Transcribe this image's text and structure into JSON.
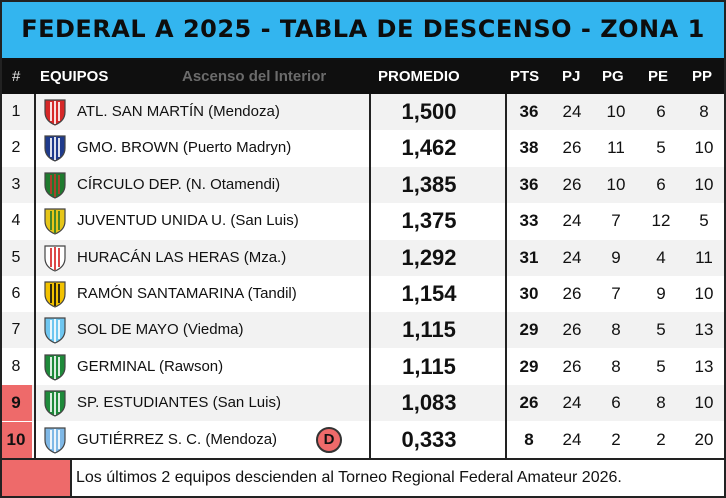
{
  "title": "FEDERAL A 2025 - TABLA DE DESCENSO - ZONA 1",
  "headers": {
    "num": "#",
    "teams": "EQUIPOS",
    "watermark": "Ascenso del Interior",
    "promedio": "PROMEDIO",
    "pts": "PTS",
    "pj": "PJ",
    "pg": "PG",
    "pe": "PE",
    "pp": "PP"
  },
  "rows": [
    {
      "pos": "1",
      "team": "ATL. SAN MARTÍN (Mendoza)",
      "promedio": "1,500",
      "pts": "36",
      "pj": "24",
      "pg": "10",
      "pe": "6",
      "pp": "8",
      "logo": "crest-red-white-stripes-icon",
      "color1": "#d62828",
      "color2": "#ffffff"
    },
    {
      "pos": "2",
      "team": "GMO. BROWN (Puerto Madryn)",
      "promedio": "1,462",
      "pts": "38",
      "pj": "26",
      "pg": "11",
      "pe": "5",
      "pp": "10",
      "logo": "crest-blue-white-icon",
      "color1": "#1f3b8c",
      "color2": "#ffffff"
    },
    {
      "pos": "3",
      "team": "CÍRCULO DEP. (N. Otamendi)",
      "promedio": "1,385",
      "pts": "36",
      "pj": "26",
      "pg": "10",
      "pe": "6",
      "pp": "10",
      "logo": "crest-green-red-icon",
      "color1": "#1e7a2e",
      "color2": "#c0392b"
    },
    {
      "pos": "4",
      "team": "JUVENTUD UNIDA U. (San Luis)",
      "promedio": "1,375",
      "pts": "33",
      "pj": "24",
      "pg": "7",
      "pe": "12",
      "pp": "5",
      "logo": "crest-yellow-green-stripes-icon",
      "color1": "#e6c619",
      "color2": "#2a7a2a"
    },
    {
      "pos": "5",
      "team": "HURACÁN LAS HERAS (Mza.)",
      "promedio": "1,292",
      "pts": "31",
      "pj": "24",
      "pg": "9",
      "pe": "4",
      "pp": "11",
      "logo": "crest-white-red-round-icon",
      "color1": "#ffffff",
      "color2": "#d62828"
    },
    {
      "pos": "6",
      "team": "RAMÓN SANTAMARINA (Tandil)",
      "promedio": "1,154",
      "pts": "30",
      "pj": "26",
      "pg": "7",
      "pe": "9",
      "pp": "10",
      "logo": "crest-yellow-black-icon",
      "color1": "#f2c200",
      "color2": "#111111"
    },
    {
      "pos": "7",
      "team": "SOL DE MAYO (Viedma)",
      "promedio": "1,115",
      "pts": "29",
      "pj": "26",
      "pg": "8",
      "pe": "5",
      "pp": "13",
      "logo": "crest-lightblue-icon",
      "color1": "#6ec6f0",
      "color2": "#ffffff"
    },
    {
      "pos": "8",
      "team": "GERMINAL (Rawson)",
      "promedio": "1,115",
      "pts": "29",
      "pj": "26",
      "pg": "8",
      "pe": "5",
      "pp": "13",
      "logo": "crest-green-white-stripes-icon",
      "color1": "#1e8a3a",
      "color2": "#ffffff"
    },
    {
      "pos": "9",
      "team": "SP. ESTUDIANTES (San Luis)",
      "promedio": "1,083",
      "pts": "26",
      "pj": "24",
      "pg": "6",
      "pe": "8",
      "pp": "10",
      "logo": "crest-green-white-icon",
      "color1": "#1e8a3a",
      "color2": "#ffffff",
      "relegated": true
    },
    {
      "pos": "10",
      "team": "GUTIÉRREZ S. C. (Mendoza)",
      "promedio": "0,333",
      "pts": "8",
      "pj": "24",
      "pg": "2",
      "pe": "2",
      "pp": "20",
      "logo": "crest-lightblue-white-icon",
      "color1": "#7fb8e6",
      "color2": "#ffffff",
      "relegated": true,
      "badge": "D"
    }
  ],
  "footer_note": "Los últimos 2 equipos descienden al Torneo Regional Federal Amateur 2026.",
  "colors": {
    "title_bg": "#33b5ef",
    "header_bg": "#0f0f0f",
    "relegation": "#ee6a6a",
    "row_even": "#f2f2f2",
    "row_odd": "#ffffff"
  }
}
